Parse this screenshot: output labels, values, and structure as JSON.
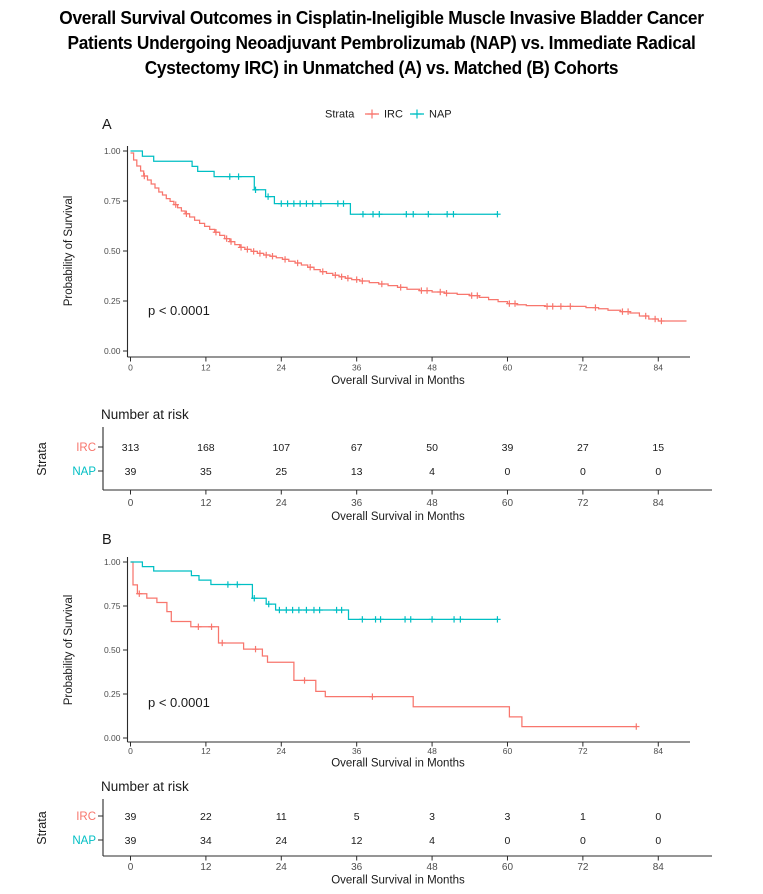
{
  "title": {
    "lines": [
      "Overall Survival Outcomes in Cisplatin-Ineligible Muscle Invasive Bladder Cancer",
      "Patients Undergoing Neoadjuvant Pembrolizumab (NAP) vs. Immediate Radical",
      "Cystectomy IRC) in Unmatched (A) vs. Matched (B) Cohorts"
    ]
  },
  "legend": {
    "label": "Strata",
    "items": [
      {
        "name": "IRC",
        "color": "#F8766D"
      },
      {
        "name": "NAP",
        "color": "#00BFC4"
      }
    ]
  },
  "colors": {
    "irc": "#F8766D",
    "nap": "#00BFC4",
    "axis": "#2b2b2b",
    "tick_text": "#4d4d4d",
    "text": "#1a1a1a"
  },
  "chart_data": [
    {
      "panel": "A",
      "type": "line",
      "subtype": "kaplan_meier_step",
      "cohort": "Unmatched",
      "xlabel": "Overall Survival in Months",
      "ylabel": "Probability of Survival",
      "xticks": [
        0,
        12,
        24,
        36,
        48,
        60,
        72,
        84
      ],
      "yticks": [
        "0.00",
        "0.25",
        "0.50",
        "0.75",
        "1.00"
      ],
      "xlim": [
        0,
        89
      ],
      "ylim": [
        0,
        1
      ],
      "pvalue": "p < 0.0001",
      "grid": false,
      "legend_position": "top",
      "series": [
        {
          "name": "IRC",
          "color": "#F8766D",
          "steps": [
            [
              0,
              0.99
            ],
            [
              0.5,
              0.955
            ],
            [
              1,
              0.925
            ],
            [
              1.6,
              0.9
            ],
            [
              2.1,
              0.875
            ],
            [
              2.7,
              0.855
            ],
            [
              3.3,
              0.835
            ],
            [
              3.9,
              0.815
            ],
            [
              4.5,
              0.795
            ],
            [
              5.1,
              0.78
            ],
            [
              5.7,
              0.762
            ],
            [
              6.3,
              0.748
            ],
            [
              6.9,
              0.732
            ],
            [
              7.5,
              0.716
            ],
            [
              8.1,
              0.7
            ],
            [
              8.7,
              0.686
            ],
            [
              9.4,
              0.67
            ],
            [
              10.2,
              0.654
            ],
            [
              11,
              0.638
            ],
            [
              11.8,
              0.623
            ],
            [
              12.6,
              0.608
            ],
            [
              13.4,
              0.594
            ],
            [
              14.2,
              0.578
            ],
            [
              15,
              0.562
            ],
            [
              15.8,
              0.547
            ],
            [
              16.6,
              0.532
            ],
            [
              17.4,
              0.518
            ],
            [
              18.2,
              0.508
            ],
            [
              19.2,
              0.498
            ],
            [
              20.2,
              0.488
            ],
            [
              21.2,
              0.48
            ],
            [
              22.2,
              0.474
            ],
            [
              23.2,
              0.466
            ],
            [
              24.2,
              0.458
            ],
            [
              25.2,
              0.449
            ],
            [
              26.2,
              0.44
            ],
            [
              27.2,
              0.43
            ],
            [
              28.2,
              0.419
            ],
            [
              29.2,
              0.407
            ],
            [
              30.2,
              0.397
            ],
            [
              31.2,
              0.388
            ],
            [
              32.2,
              0.379
            ],
            [
              33.2,
              0.371
            ],
            [
              34.2,
              0.364
            ],
            [
              35.2,
              0.357
            ],
            [
              36.5,
              0.35
            ],
            [
              38,
              0.342
            ],
            [
              39.5,
              0.335
            ],
            [
              41,
              0.327
            ],
            [
              42.5,
              0.318
            ],
            [
              44,
              0.309
            ],
            [
              46,
              0.302
            ],
            [
              48,
              0.295
            ],
            [
              50,
              0.289
            ],
            [
              52,
              0.283
            ],
            [
              54,
              0.277
            ],
            [
              55.5,
              0.268
            ],
            [
              57,
              0.257
            ],
            [
              58.5,
              0.247
            ],
            [
              60,
              0.237
            ],
            [
              61.5,
              0.231
            ],
            [
              63,
              0.227
            ],
            [
              66,
              0.223
            ],
            [
              72.5,
              0.217
            ],
            [
              74.5,
              0.211
            ],
            [
              76,
              0.204
            ],
            [
              78,
              0.197
            ],
            [
              79.5,
              0.19
            ],
            [
              81,
              0.175
            ],
            [
              82.5,
              0.16
            ],
            [
              84,
              0.15
            ],
            [
              88.5,
              0.15
            ]
          ],
          "censor_times": [
            2.2,
            7.2,
            8.9,
            13.6,
            15.3,
            16,
            17.6,
            18.6,
            19.6,
            20.6,
            21.6,
            22.6,
            24.6,
            26.6,
            28.6,
            30.6,
            32.6,
            33.6,
            34.6,
            36,
            36.9,
            40,
            43,
            46.3,
            47.2,
            49.3,
            50.3,
            54.3,
            55.2,
            60.3,
            61.2,
            66.3,
            67.2,
            68.5,
            70,
            74,
            78.3,
            79.2,
            82,
            83.5,
            84.5
          ]
        },
        {
          "name": "NAP",
          "color": "#00BFC4",
          "steps": [
            [
              0,
              1.0
            ],
            [
              1.9,
              0.974
            ],
            [
              3.7,
              0.949
            ],
            [
              9.8,
              0.923
            ],
            [
              10.7,
              0.898
            ],
            [
              13.3,
              0.872
            ],
            [
              19.7,
              0.806
            ],
            [
              21.5,
              0.772
            ],
            [
              22.9,
              0.737
            ],
            [
              35,
              0.684
            ],
            [
              58.5,
              0.684
            ]
          ],
          "censor_times": [
            15.8,
            17.2,
            19.9,
            21.9,
            24,
            25,
            26,
            27,
            28,
            29,
            30.3,
            33,
            33.9,
            37,
            38.6,
            39.6,
            43.9,
            45,
            47.4,
            50.4,
            51.4,
            58.4
          ]
        }
      ],
      "risk_table": {
        "title": "Number at risk",
        "axis_label": "Strata",
        "xlabel": "Overall Survival in Months",
        "xticks": [
          0,
          12,
          24,
          36,
          48,
          60,
          72,
          84
        ],
        "rows": [
          {
            "name": "IRC",
            "color": "#F8766D",
            "values": [
              "313",
              "168",
              "107",
              "67",
              "50",
              "39",
              "27",
              "15"
            ]
          },
          {
            "name": "NAP",
            "color": "#00BFC4",
            "values": [
              "39",
              "35",
              "25",
              "13",
              "4",
              "0",
              "0",
              "0"
            ]
          }
        ]
      }
    },
    {
      "panel": "B",
      "type": "line",
      "subtype": "kaplan_meier_step",
      "cohort": "Matched",
      "xlabel": "Overall Survival in Months",
      "ylabel": "Probability of Survival",
      "xticks": [
        0,
        12,
        24,
        36,
        48,
        60,
        72,
        84
      ],
      "yticks": [
        "0.00",
        "0.25",
        "0.50",
        "0.75",
        "1.00"
      ],
      "xlim": [
        0,
        89
      ],
      "ylim": [
        0,
        1
      ],
      "pvalue": "p < 0.0001",
      "grid": false,
      "legend_position": "none",
      "series": [
        {
          "name": "IRC",
          "color": "#F8766D",
          "steps": [
            [
              0,
              1.0
            ],
            [
              0.4,
              0.87
            ],
            [
              1.1,
              0.82
            ],
            [
              2.6,
              0.795
            ],
            [
              4.2,
              0.77
            ],
            [
              5.8,
              0.718
            ],
            [
              6.5,
              0.662
            ],
            [
              9.6,
              0.632
            ],
            [
              14,
              0.54
            ],
            [
              18,
              0.505
            ],
            [
              21,
              0.466
            ],
            [
              21.8,
              0.43
            ],
            [
              26,
              0.327
            ],
            [
              29.5,
              0.265
            ],
            [
              31,
              0.235
            ],
            [
              45,
              0.178
            ],
            [
              60.3,
              0.12
            ],
            [
              62.3,
              0.065
            ],
            [
              80.5,
              0.065
            ]
          ],
          "censor_times": [
            1.4,
            10.8,
            12.9,
            14.6,
            19.9,
            27.7,
            38.5,
            80.5
          ]
        },
        {
          "name": "NAP",
          "color": "#00BFC4",
          "steps": [
            [
              0,
              1.0
            ],
            [
              1.9,
              0.974
            ],
            [
              3.7,
              0.949
            ],
            [
              9.7,
              0.923
            ],
            [
              10.9,
              0.897
            ],
            [
              12.8,
              0.872
            ],
            [
              19.4,
              0.794
            ],
            [
              21.6,
              0.761
            ],
            [
              23.1,
              0.727
            ],
            [
              34.7,
              0.674
            ],
            [
              58.4,
              0.674
            ]
          ],
          "censor_times": [
            15.5,
            17,
            19.7,
            22,
            23.7,
            24.8,
            25.8,
            26.8,
            28,
            29.2,
            30.1,
            32.8,
            33.6,
            36.9,
            39,
            39.8,
            43.7,
            44.6,
            48,
            51.5,
            52.5,
            58.4
          ]
        }
      ],
      "risk_table": {
        "title": "Number at risk",
        "axis_label": "Strata",
        "xlabel": "Overall Survival in Months",
        "xticks": [
          0,
          12,
          24,
          36,
          48,
          60,
          72,
          84
        ],
        "rows": [
          {
            "name": "IRC",
            "color": "#F8766D",
            "values": [
              "39",
              "22",
              "11",
              "5",
              "3",
              "3",
              "1",
              "0"
            ]
          },
          {
            "name": "NAP",
            "color": "#00BFC4",
            "values": [
              "39",
              "34",
              "24",
              "12",
              "4",
              "0",
              "0",
              "0"
            ]
          }
        ]
      }
    }
  ]
}
